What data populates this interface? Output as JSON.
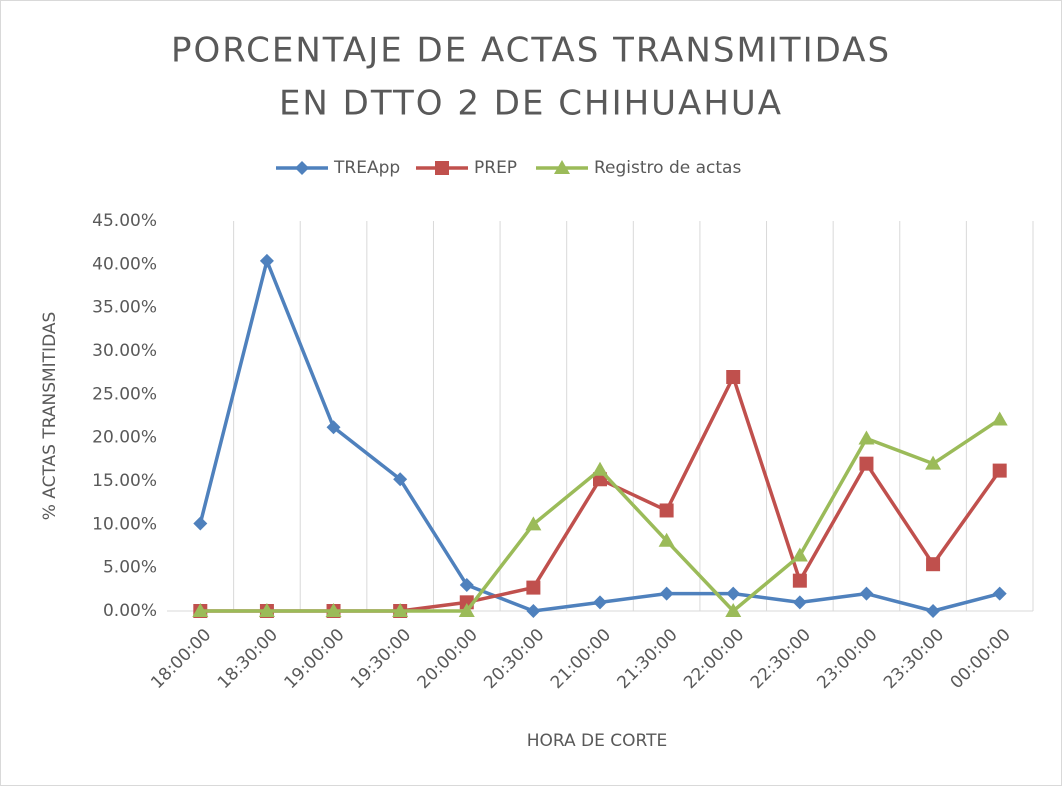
{
  "chart_data": {
    "type": "line",
    "title": [
      "PORCENTAJE DE ACTAS TRANSMITIDAS",
      "EN DTTO 2 DE CHIHUAHUA"
    ],
    "x_label": "HORA DE CORTE",
    "y_label": "% ACTAS TRANSMITIDAS",
    "categories": [
      "18:00:00",
      "18:30:00",
      "19:00:00",
      "19:30:00",
      "20:00:00",
      "20:30:00",
      "21:00:00",
      "21:30:00",
      "22:00:00",
      "22:30:00",
      "23:00:00",
      "23:30:00",
      "00:00:00"
    ],
    "series": [
      {
        "name": "TREApp",
        "color": "#4f81bd",
        "marker": "diamond",
        "values": [
          10.1,
          40.4,
          21.2,
          15.2,
          3.0,
          0,
          1.0,
          2.0,
          2.0,
          1.0,
          2.0,
          0,
          2.0
        ]
      },
      {
        "name": "PREP",
        "color": "#c0504d",
        "marker": "square",
        "values": [
          0,
          0,
          0,
          0,
          1.0,
          2.7,
          15.2,
          11.6,
          27.0,
          3.5,
          17.0,
          5.4,
          16.2
        ]
      },
      {
        "name": "Registro de actas",
        "color": "#9bbb59",
        "marker": "triangle",
        "values": [
          0,
          0,
          0,
          0,
          0,
          10.0,
          16.3,
          8.1,
          0,
          6.4,
          19.9,
          17.0,
          22.1
        ]
      }
    ],
    "ylim": [
      0,
      45
    ],
    "yticks": [
      {
        "value": 0,
        "label": "0.00%"
      },
      {
        "value": 5,
        "label": "5.00%"
      },
      {
        "value": 10,
        "label": "10.00%"
      },
      {
        "value": 15,
        "label": "15.00%"
      },
      {
        "value": 20,
        "label": "20.00%"
      },
      {
        "value": 25,
        "label": "25.00%"
      },
      {
        "value": 30,
        "label": "30.00%"
      },
      {
        "value": 35,
        "label": "35.00%"
      },
      {
        "value": 40,
        "label": "40.00%"
      },
      {
        "value": 45,
        "label": "45.00%"
      }
    ],
    "legend": "top",
    "grid": "vertical"
  }
}
